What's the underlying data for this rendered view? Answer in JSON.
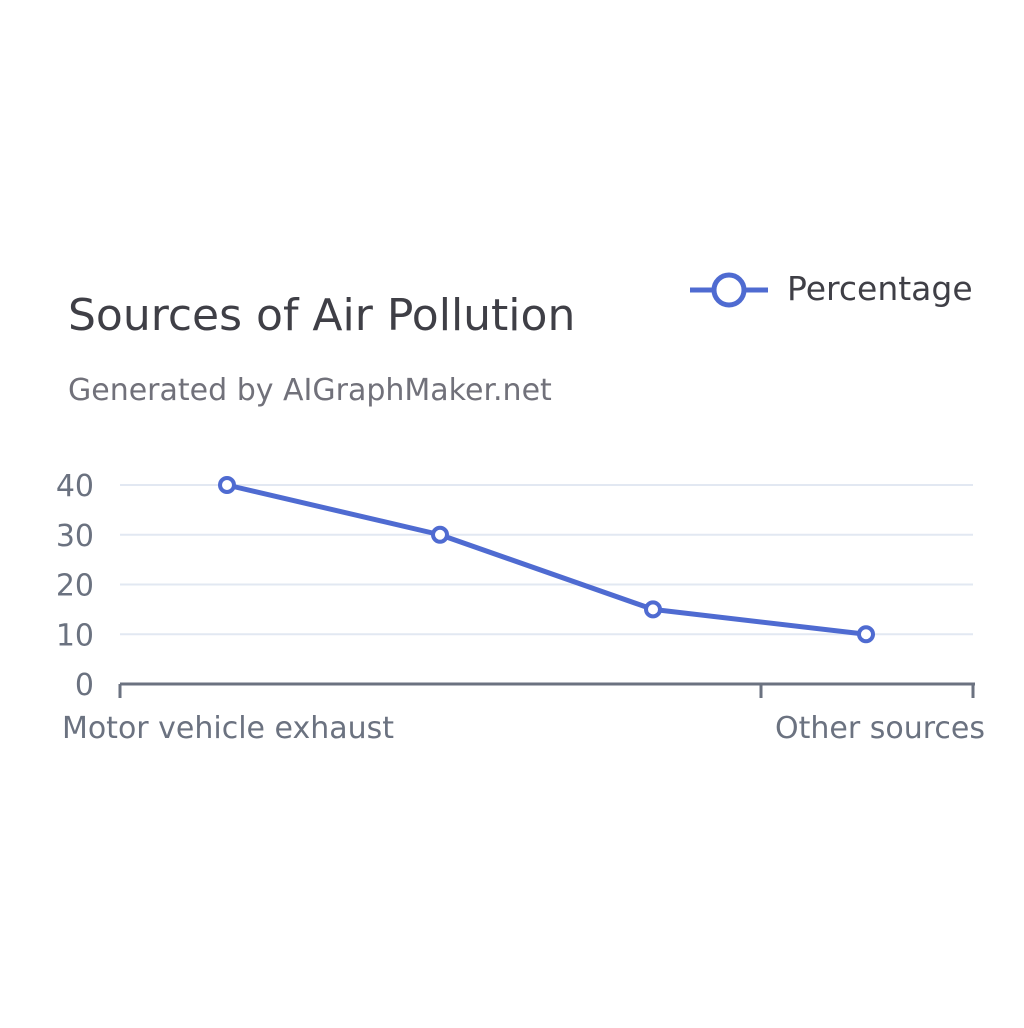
{
  "chart_data": {
    "type": "line",
    "title": "Sources of Air Pollution",
    "subtitle": "Generated by AIGraphMaker.net",
    "categories": [
      "Motor vehicle exhaust",
      "",
      "",
      "Other sources"
    ],
    "series": [
      {
        "name": "Percentage",
        "values": [
          40,
          30,
          15,
          10
        ],
        "color": "#4f6bd1"
      }
    ],
    "yticks": [
      0,
      10,
      20,
      30,
      40
    ],
    "ylim": [
      0,
      40
    ],
    "xtick_labels_shown": [
      "Motor vehicle exhaust",
      "Other sources"
    ],
    "grid": true,
    "legend_position": "top-right",
    "colors": {
      "series": "#4f6bd1",
      "grid": "#e2e8f2",
      "axis": "#6b7280",
      "title": "#3f3f46",
      "subtitle": "#71717a",
      "ticks": "#6b7280"
    }
  }
}
